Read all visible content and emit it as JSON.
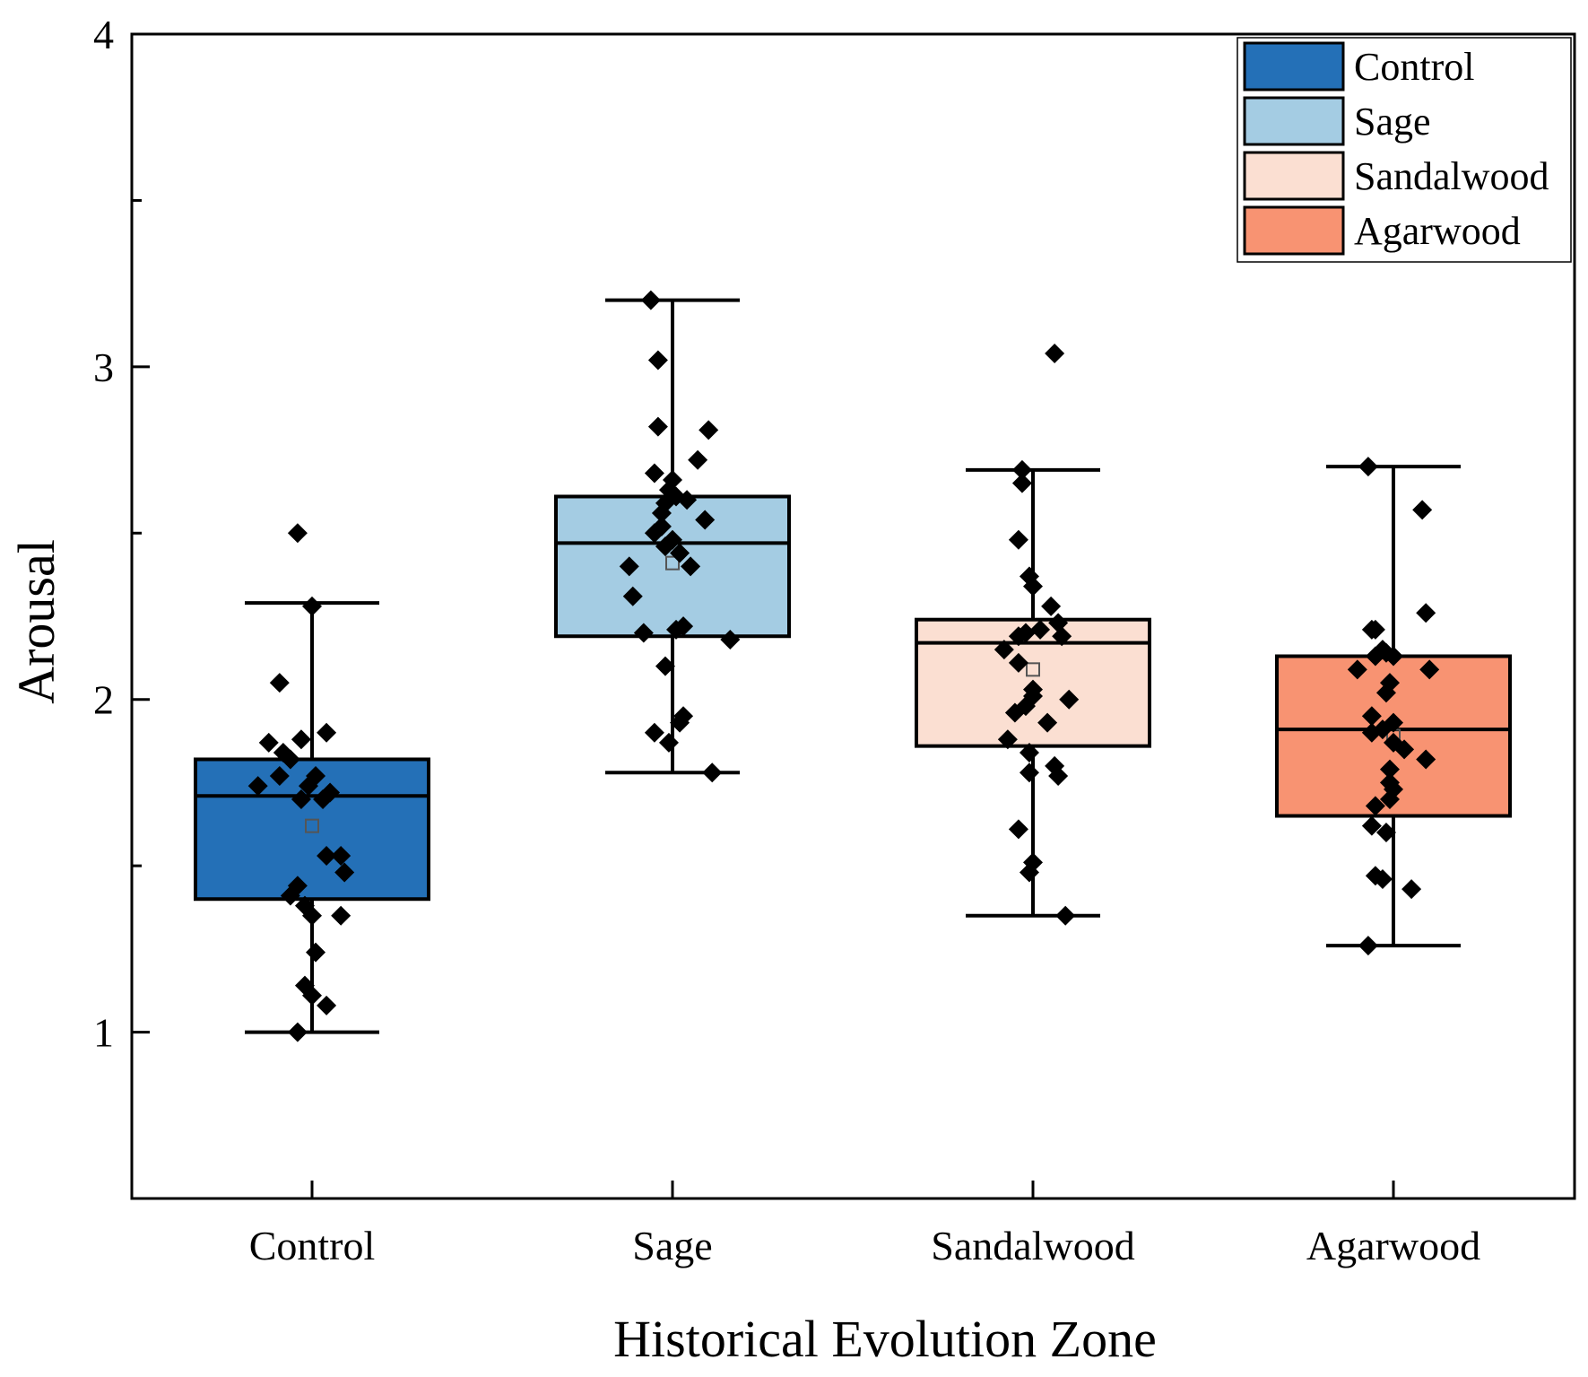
{
  "chart_data": {
    "type": "box",
    "title": "",
    "xlabel": "Historical Evolution Zone",
    "ylabel": "Arousal",
    "ylim": [
      0.5,
      4.0
    ],
    "yticks": [
      1,
      2,
      3,
      4
    ],
    "categories": [
      "Control",
      "Sage",
      "Sandalwood",
      "Agarwood"
    ],
    "legend": {
      "position": "top-right",
      "entries": [
        {
          "label": "Control",
          "color": "#2470b7"
        },
        {
          "label": "Sage",
          "color": "#a4cce3"
        },
        {
          "label": "Sandalwood",
          "color": "#fbdfd2"
        },
        {
          "label": "Agarwood",
          "color": "#f89372"
        }
      ]
    },
    "series": [
      {
        "name": "Control",
        "color": "#2470b7",
        "whisker_low": 1.0,
        "q1": 1.4,
        "median": 1.71,
        "q3": 1.82,
        "whisker_high": 2.29,
        "mean": 1.62,
        "points": [
          {
            "dx": -0.04,
            "y": 2.5
          },
          {
            "dx": 0.0,
            "y": 2.28
          },
          {
            "dx": -0.09,
            "y": 2.05
          },
          {
            "dx": 0.04,
            "y": 1.9
          },
          {
            "dx": -0.12,
            "y": 1.87
          },
          {
            "dx": -0.03,
            "y": 1.88
          },
          {
            "dx": -0.08,
            "y": 1.84
          },
          {
            "dx": -0.06,
            "y": 1.82
          },
          {
            "dx": -0.09,
            "y": 1.77
          },
          {
            "dx": 0.01,
            "y": 1.77
          },
          {
            "dx": -0.15,
            "y": 1.74
          },
          {
            "dx": -0.01,
            "y": 1.74
          },
          {
            "dx": 0.05,
            "y": 1.72
          },
          {
            "dx": 0.03,
            "y": 1.7
          },
          {
            "dx": -0.03,
            "y": 1.7
          },
          {
            "dx": 0.04,
            "y": 1.53
          },
          {
            "dx": 0.08,
            "y": 1.53
          },
          {
            "dx": 0.09,
            "y": 1.48
          },
          {
            "dx": -0.04,
            "y": 1.44
          },
          {
            "dx": -0.06,
            "y": 1.41
          },
          {
            "dx": -0.02,
            "y": 1.38
          },
          {
            "dx": 0.0,
            "y": 1.35
          },
          {
            "dx": 0.08,
            "y": 1.35
          },
          {
            "dx": 0.01,
            "y": 1.24
          },
          {
            "dx": -0.02,
            "y": 1.14
          },
          {
            "dx": 0.0,
            "y": 1.11
          },
          {
            "dx": 0.04,
            "y": 1.08
          },
          {
            "dx": -0.04,
            "y": 1.0
          }
        ]
      },
      {
        "name": "Sage",
        "color": "#a4cce3",
        "whisker_low": 1.78,
        "q1": 2.19,
        "median": 2.47,
        "q3": 2.61,
        "whisker_high": 3.2,
        "mean": 2.41,
        "points": [
          {
            "dx": -0.06,
            "y": 3.2
          },
          {
            "dx": -0.04,
            "y": 3.02
          },
          {
            "dx": -0.04,
            "y": 2.82
          },
          {
            "dx": 0.1,
            "y": 2.81
          },
          {
            "dx": 0.07,
            "y": 2.72
          },
          {
            "dx": -0.05,
            "y": 2.68
          },
          {
            "dx": 0.0,
            "y": 2.66
          },
          {
            "dx": -0.01,
            "y": 2.63
          },
          {
            "dx": 0.01,
            "y": 2.61
          },
          {
            "dx": 0.04,
            "y": 2.6
          },
          {
            "dx": -0.02,
            "y": 2.59
          },
          {
            "dx": -0.03,
            "y": 2.56
          },
          {
            "dx": 0.09,
            "y": 2.54
          },
          {
            "dx": -0.03,
            "y": 2.52
          },
          {
            "dx": -0.05,
            "y": 2.5
          },
          {
            "dx": 0.0,
            "y": 2.48
          },
          {
            "dx": -0.02,
            "y": 2.46
          },
          {
            "dx": 0.02,
            "y": 2.44
          },
          {
            "dx": -0.12,
            "y": 2.4
          },
          {
            "dx": 0.05,
            "y": 2.4
          },
          {
            "dx": -0.11,
            "y": 2.31
          },
          {
            "dx": 0.03,
            "y": 2.22
          },
          {
            "dx": 0.01,
            "y": 2.21
          },
          {
            "dx": -0.08,
            "y": 2.2
          },
          {
            "dx": 0.16,
            "y": 2.18
          },
          {
            "dx": -0.02,
            "y": 2.1
          },
          {
            "dx": 0.03,
            "y": 1.95
          },
          {
            "dx": 0.02,
            "y": 1.93
          },
          {
            "dx": -0.05,
            "y": 1.9
          },
          {
            "dx": -0.01,
            "y": 1.87
          },
          {
            "dx": 0.11,
            "y": 1.78
          }
        ]
      },
      {
        "name": "Sandalwood",
        "color": "#fbdfd2",
        "whisker_low": 1.35,
        "q1": 1.86,
        "median": 2.17,
        "q3": 2.24,
        "whisker_high": 2.69,
        "mean": 2.09,
        "points": [
          {
            "dx": 0.06,
            "y": 3.04
          },
          {
            "dx": -0.03,
            "y": 2.69
          },
          {
            "dx": -0.03,
            "y": 2.65
          },
          {
            "dx": -0.04,
            "y": 2.48
          },
          {
            "dx": -0.01,
            "y": 2.37
          },
          {
            "dx": 0.0,
            "y": 2.34
          },
          {
            "dx": 0.05,
            "y": 2.28
          },
          {
            "dx": 0.07,
            "y": 2.23
          },
          {
            "dx": 0.02,
            "y": 2.21
          },
          {
            "dx": -0.02,
            "y": 2.2
          },
          {
            "dx": -0.04,
            "y": 2.19
          },
          {
            "dx": 0.08,
            "y": 2.19
          },
          {
            "dx": -0.08,
            "y": 2.15
          },
          {
            "dx": -0.04,
            "y": 2.11
          },
          {
            "dx": 0.0,
            "y": 2.03
          },
          {
            "dx": 0.0,
            "y": 2.01
          },
          {
            "dx": 0.1,
            "y": 2.0
          },
          {
            "dx": -0.02,
            "y": 1.98
          },
          {
            "dx": -0.05,
            "y": 1.96
          },
          {
            "dx": 0.04,
            "y": 1.93
          },
          {
            "dx": -0.07,
            "y": 1.88
          },
          {
            "dx": -0.01,
            "y": 1.84
          },
          {
            "dx": 0.06,
            "y": 1.8
          },
          {
            "dx": -0.01,
            "y": 1.78
          },
          {
            "dx": 0.07,
            "y": 1.77
          },
          {
            "dx": -0.04,
            "y": 1.61
          },
          {
            "dx": 0.0,
            "y": 1.51
          },
          {
            "dx": -0.01,
            "y": 1.48
          },
          {
            "dx": 0.09,
            "y": 1.35
          }
        ]
      },
      {
        "name": "Agarwood",
        "color": "#f89372",
        "whisker_low": 1.26,
        "q1": 1.65,
        "median": 1.91,
        "q3": 2.13,
        "whisker_high": 2.7,
        "mean": 1.89,
        "points": [
          {
            "dx": -0.07,
            "y": 2.7
          },
          {
            "dx": 0.08,
            "y": 2.57
          },
          {
            "dx": 0.09,
            "y": 2.26
          },
          {
            "dx": -0.06,
            "y": 2.21
          },
          {
            "dx": -0.05,
            "y": 2.21
          },
          {
            "dx": -0.03,
            "y": 2.15
          },
          {
            "dx": -0.02,
            "y": 2.14
          },
          {
            "dx": 0.0,
            "y": 2.13
          },
          {
            "dx": -0.05,
            "y": 2.13
          },
          {
            "dx": 0.1,
            "y": 2.09
          },
          {
            "dx": -0.1,
            "y": 2.09
          },
          {
            "dx": -0.01,
            "y": 2.05
          },
          {
            "dx": -0.02,
            "y": 2.02
          },
          {
            "dx": -0.06,
            "y": 1.95
          },
          {
            "dx": 0.0,
            "y": 1.93
          },
          {
            "dx": -0.03,
            "y": 1.91
          },
          {
            "dx": -0.06,
            "y": 1.9
          },
          {
            "dx": 0.0,
            "y": 1.87
          },
          {
            "dx": 0.03,
            "y": 1.85
          },
          {
            "dx": 0.09,
            "y": 1.82
          },
          {
            "dx": -0.01,
            "y": 1.79
          },
          {
            "dx": -0.01,
            "y": 1.75
          },
          {
            "dx": 0.0,
            "y": 1.73
          },
          {
            "dx": -0.01,
            "y": 1.7
          },
          {
            "dx": -0.05,
            "y": 1.68
          },
          {
            "dx": -0.06,
            "y": 1.62
          },
          {
            "dx": -0.02,
            "y": 1.6
          },
          {
            "dx": -0.05,
            "y": 1.47
          },
          {
            "dx": -0.03,
            "y": 1.46
          },
          {
            "dx": 0.05,
            "y": 1.43
          },
          {
            "dx": -0.07,
            "y": 1.26
          }
        ]
      }
    ]
  }
}
